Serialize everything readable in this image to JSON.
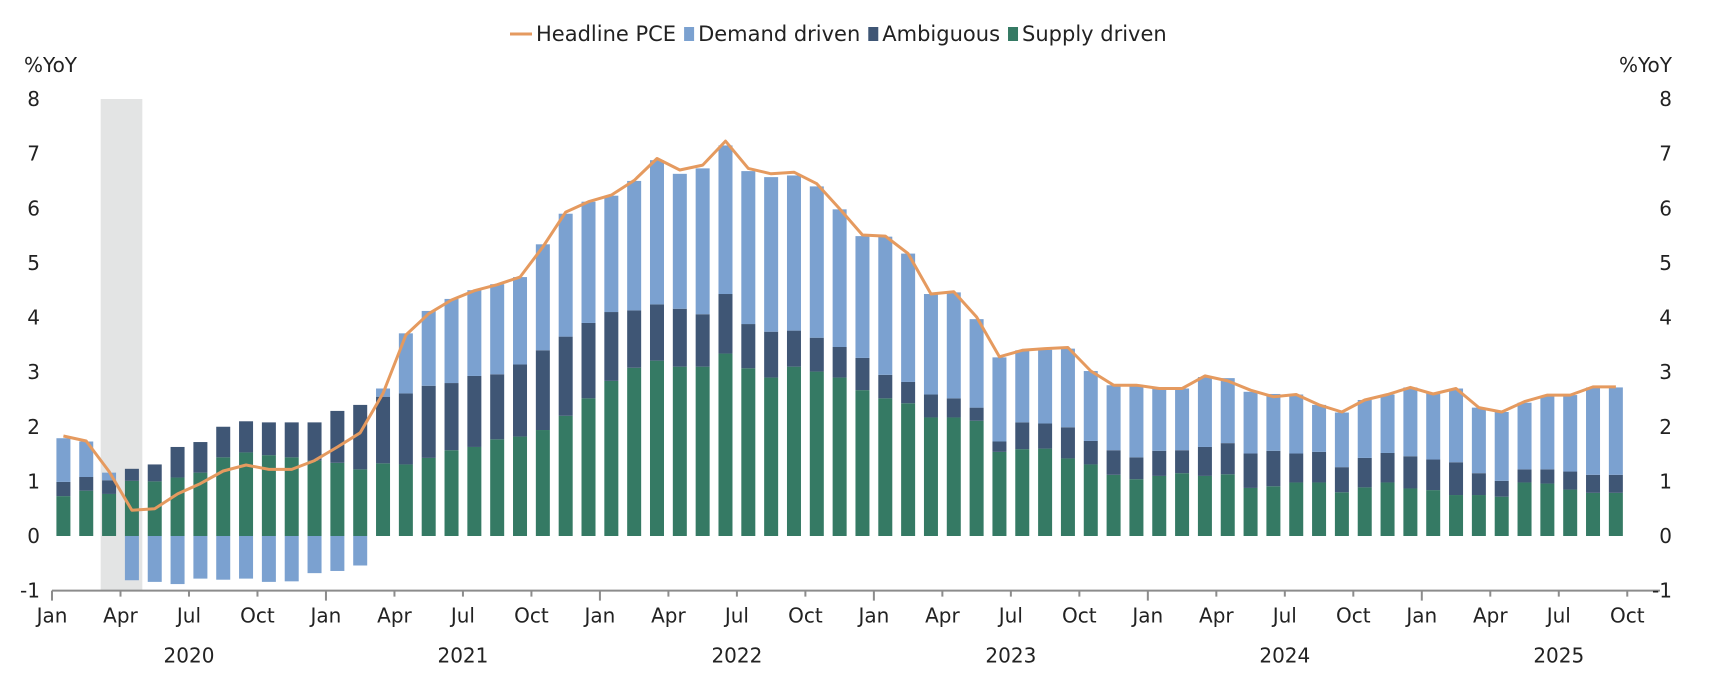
{
  "chart_data": {
    "type": "bar",
    "stacked": true,
    "title": "",
    "ylabel_left": "%YoY",
    "ylabel_right": "%YoY",
    "ylim": [
      -1,
      8
    ],
    "yticks": [
      -1,
      0,
      1,
      2,
      3,
      4,
      5,
      6,
      7,
      8
    ],
    "grid": false,
    "legend_position": "top-center",
    "legend": [
      {
        "name": "Headline PCE",
        "type": "line",
        "color": "#E59A5F"
      },
      {
        "name": "Demand driven",
        "type": "bar",
        "color": "#7BA1D0"
      },
      {
        "name": "Ambiguous",
        "type": "bar",
        "color": "#3F5675"
      },
      {
        "name": "Supply driven",
        "type": "bar",
        "color": "#357A64"
      }
    ],
    "recession_shading": {
      "start": "2020-03",
      "end": "2020-04",
      "color": "#E3E4E4"
    },
    "x_tick_labels": [
      "Jan",
      "Apr",
      "Jul",
      "Oct",
      "Jan",
      "Apr",
      "Jul",
      "Oct",
      "Jan",
      "Apr",
      "Jul",
      "Oct",
      "Jan",
      "Apr",
      "Jul",
      "Oct",
      "Jan",
      "Apr",
      "Jul",
      "Oct",
      "Jan",
      "Apr",
      "Jul",
      "Oct"
    ],
    "x_year_labels": [
      "2020",
      "2021",
      "2022",
      "2023",
      "2024",
      "2025"
    ],
    "x": [
      "2020-01",
      "2020-02",
      "2020-03",
      "2020-04",
      "2020-05",
      "2020-06",
      "2020-07",
      "2020-08",
      "2020-09",
      "2020-10",
      "2020-11",
      "2020-12",
      "2021-01",
      "2021-02",
      "2021-03",
      "2021-04",
      "2021-05",
      "2021-06",
      "2021-07",
      "2021-08",
      "2021-09",
      "2021-10",
      "2021-11",
      "2021-12",
      "2022-01",
      "2022-02",
      "2022-03",
      "2022-04",
      "2022-05",
      "2022-06",
      "2022-07",
      "2022-08",
      "2022-09",
      "2022-10",
      "2022-11",
      "2022-12",
      "2023-01",
      "2023-02",
      "2023-03",
      "2023-04",
      "2023-05",
      "2023-06",
      "2023-07",
      "2023-08",
      "2023-09",
      "2023-10",
      "2023-11",
      "2023-12",
      "2024-01",
      "2024-02",
      "2024-03",
      "2024-04",
      "2024-05",
      "2024-06",
      "2024-07",
      "2024-08",
      "2024-09",
      "2024-10",
      "2024-11",
      "2024-12",
      "2025-01",
      "2025-02",
      "2025-03",
      "2025-04",
      "2025-05",
      "2025-06",
      "2025-07",
      "2025-08",
      "2025-09"
    ],
    "series": [
      {
        "name": "Supply driven",
        "values": [
          0.73,
          0.83,
          0.77,
          1.01,
          1.0,
          1.07,
          1.16,
          1.44,
          1.53,
          1.48,
          1.44,
          1.38,
          1.34,
          1.22,
          1.33,
          1.31,
          1.43,
          1.57,
          1.63,
          1.77,
          1.82,
          1.94,
          2.2,
          2.52,
          2.84,
          3.08,
          3.21,
          3.1,
          3.1,
          3.34,
          3.07,
          2.9,
          3.1,
          3.01,
          2.9,
          2.67,
          2.52,
          2.43,
          2.17,
          2.17,
          2.11,
          1.54,
          1.59,
          1.6,
          1.42,
          1.31,
          1.12,
          1.04,
          1.1,
          1.15,
          1.1,
          1.13,
          0.88,
          0.91,
          0.98,
          0.98,
          0.8,
          0.89,
          0.98,
          0.87,
          0.84,
          0.75,
          0.75,
          0.72,
          0.98,
          0.96,
          0.85,
          0.79,
          0.79
        ]
      },
      {
        "name": "Ambiguous",
        "values": [
          0.26,
          0.25,
          0.25,
          0.22,
          0.31,
          0.56,
          0.56,
          0.56,
          0.57,
          0.6,
          0.64,
          0.7,
          0.95,
          1.18,
          1.22,
          1.3,
          1.32,
          1.23,
          1.3,
          1.19,
          1.32,
          1.46,
          1.45,
          1.38,
          1.26,
          1.05,
          1.03,
          1.06,
          0.96,
          1.09,
          0.81,
          0.84,
          0.66,
          0.62,
          0.56,
          0.59,
          0.43,
          0.39,
          0.42,
          0.35,
          0.24,
          0.19,
          0.49,
          0.46,
          0.57,
          0.43,
          0.45,
          0.4,
          0.46,
          0.42,
          0.53,
          0.57,
          0.63,
          0.65,
          0.53,
          0.56,
          0.46,
          0.54,
          0.54,
          0.59,
          0.56,
          0.6,
          0.4,
          0.29,
          0.24,
          0.26,
          0.33,
          0.33,
          0.33
        ]
      },
      {
        "name": "Demand driven",
        "values": [
          0.8,
          0.65,
          0.14,
          -0.81,
          -0.84,
          -0.88,
          -0.78,
          -0.8,
          -0.78,
          -0.84,
          -0.83,
          -0.68,
          -0.64,
          -0.54,
          0.15,
          1.1,
          1.37,
          1.54,
          1.57,
          1.65,
          1.6,
          1.94,
          2.25,
          2.22,
          2.13,
          2.37,
          2.64,
          2.47,
          2.67,
          2.72,
          2.8,
          2.83,
          2.84,
          2.77,
          2.52,
          2.23,
          2.53,
          2.35,
          1.84,
          1.94,
          1.62,
          1.54,
          1.32,
          1.35,
          1.44,
          1.28,
          1.19,
          1.3,
          1.14,
          1.13,
          1.28,
          1.19,
          1.13,
          1.04,
          1.08,
          0.86,
          1.0,
          1.06,
          1.07,
          1.26,
          1.21,
          1.35,
          1.2,
          1.26,
          1.22,
          1.34,
          1.4,
          1.6,
          1.6
        ]
      },
      {
        "name": "Headline PCE",
        "type": "line",
        "values": [
          1.83,
          1.74,
          1.18,
          0.47,
          0.5,
          0.77,
          0.96,
          1.19,
          1.3,
          1.22,
          1.22,
          1.38,
          1.63,
          1.89,
          2.61,
          3.68,
          4.07,
          4.32,
          4.49,
          4.6,
          4.74,
          5.29,
          5.93,
          6.12,
          6.24,
          6.51,
          6.91,
          6.7,
          6.79,
          7.23,
          6.73,
          6.63,
          6.66,
          6.45,
          5.99,
          5.51,
          5.49,
          5.17,
          4.43,
          4.47,
          4.01,
          3.28,
          3.4,
          3.43,
          3.45,
          3.02,
          2.76,
          2.76,
          2.7,
          2.7,
          2.93,
          2.84,
          2.67,
          2.55,
          2.59,
          2.4,
          2.27,
          2.49,
          2.59,
          2.72,
          2.6,
          2.7,
          2.35,
          2.27,
          2.46,
          2.58,
          2.58,
          2.73,
          2.73
        ]
      }
    ]
  }
}
